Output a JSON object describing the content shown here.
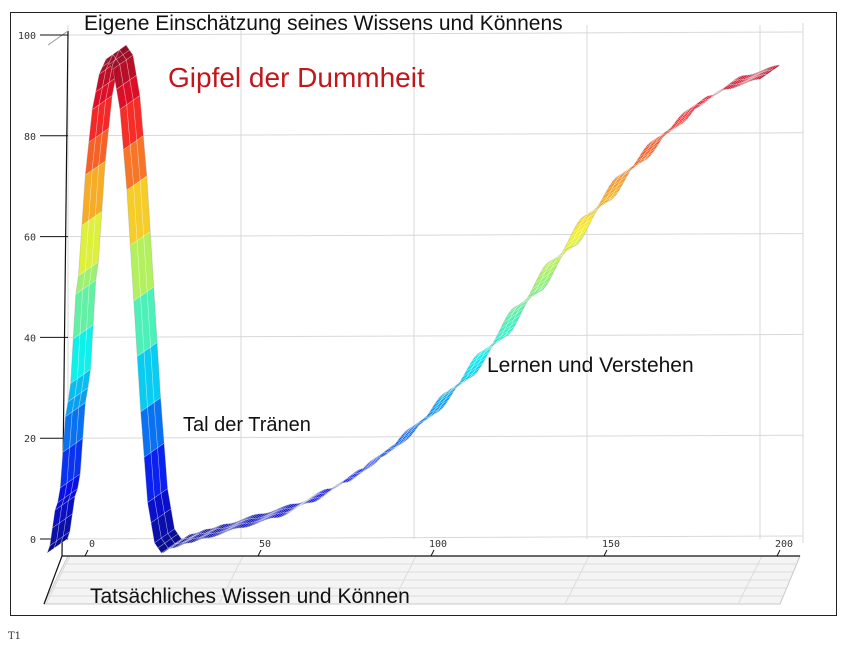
{
  "chart_data": {
    "type": "area",
    "style": "3d-ribbon",
    "title": "",
    "ylabel": "Eigene Einschätzung seines Wissens und Könnens",
    "xlabel": "Tatsächliches Wissen und Können",
    "xlim": [
      0,
      200
    ],
    "ylim": [
      0,
      100
    ],
    "x_ticks": [
      0,
      50,
      100,
      150,
      200
    ],
    "y_ticks": [
      0,
      20,
      40,
      60,
      80,
      100
    ],
    "grid": true,
    "colormap": "jet",
    "series": [
      {
        "x": [
          -6,
          -3,
          0,
          3,
          5,
          7,
          9,
          11,
          13,
          15,
          17,
          19,
          21,
          23,
          25,
          27,
          30,
          35,
          40,
          50,
          60,
          70,
          80,
          90,
          100,
          110,
          120,
          130,
          140,
          150,
          160,
          170,
          180,
          190,
          200
        ],
        "y": [
          0,
          10,
          30,
          55,
          75,
          88,
          95,
          98,
          96,
          88,
          72,
          50,
          28,
          10,
          2,
          0,
          1,
          2,
          3,
          5,
          7,
          10,
          14,
          19,
          25,
          32,
          40,
          49,
          58,
          67,
          75,
          82,
          88,
          92,
          94
        ]
      }
    ],
    "annotations": [
      {
        "text": "Gipfel der Dummheit",
        "color": "#c0171b"
      },
      {
        "text": "Tal der Tränen"
      },
      {
        "text": "Lernen und Verstehen"
      }
    ]
  },
  "corner_label": "T1"
}
